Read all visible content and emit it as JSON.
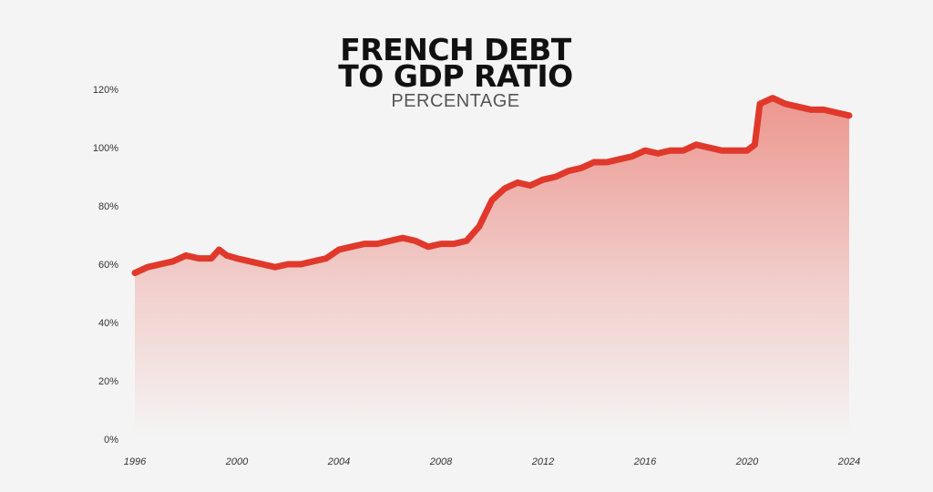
{
  "chart_data": {
    "type": "area",
    "title_lines": [
      "FRENCH DEBT",
      "TO GDP RATIO"
    ],
    "subtitle": "PERCENTAGE",
    "xlabel": "",
    "ylabel": "",
    "xlim": [
      1996,
      2024
    ],
    "ylim": [
      0,
      120
    ],
    "y_ticks": [
      0,
      20,
      40,
      60,
      80,
      100,
      120
    ],
    "y_tick_labels": [
      "0%",
      "20%",
      "40%",
      "60%",
      "80%",
      "100%",
      "120%"
    ],
    "x_ticks": [
      1996,
      2000,
      2004,
      2008,
      2012,
      2016,
      2020,
      2024
    ],
    "x_tick_labels": [
      "1996",
      "2000",
      "2004",
      "2008",
      "2012",
      "2016",
      "2020",
      "2024"
    ],
    "grid": false,
    "line_color": "#e0392b",
    "fill_color": "#e64a3c",
    "series": [
      {
        "x": [
          1996,
          1996.5,
          1997,
          1997.5,
          1998,
          1998.5,
          1999,
          1999.3,
          1999.6,
          2000,
          2000.5,
          2001,
          2001.5,
          2002,
          2002.5,
          2003,
          2003.5,
          2004,
          2004.5,
          2005,
          2005.5,
          2006,
          2006.5,
          2007,
          2007.5,
          2008,
          2008.5,
          2009,
          2009.5,
          2010,
          2010.5,
          2011,
          2011.5,
          2012,
          2012.5,
          2013,
          2013.5,
          2014,
          2014.5,
          2015,
          2015.5,
          2016,
          2016.5,
          2017,
          2017.5,
          2018,
          2018.5,
          2019,
          2019.5,
          2020,
          2020.3,
          2020.5,
          2021,
          2021.5,
          2022,
          2022.5,
          2023,
          2023.5,
          2024
        ],
        "y": [
          57,
          59,
          60,
          61,
          63,
          62,
          62,
          65,
          63,
          62,
          61,
          60,
          59,
          60,
          60,
          61,
          62,
          65,
          66,
          67,
          67,
          68,
          69,
          68,
          66,
          67,
          67,
          68,
          73,
          82,
          86,
          88,
          87,
          89,
          90,
          92,
          93,
          95,
          95,
          96,
          97,
          99,
          98,
          99,
          99,
          101,
          100,
          99,
          99,
          99,
          101,
          115,
          117,
          115,
          114,
          113,
          113,
          112,
          111
        ]
      }
    ]
  }
}
